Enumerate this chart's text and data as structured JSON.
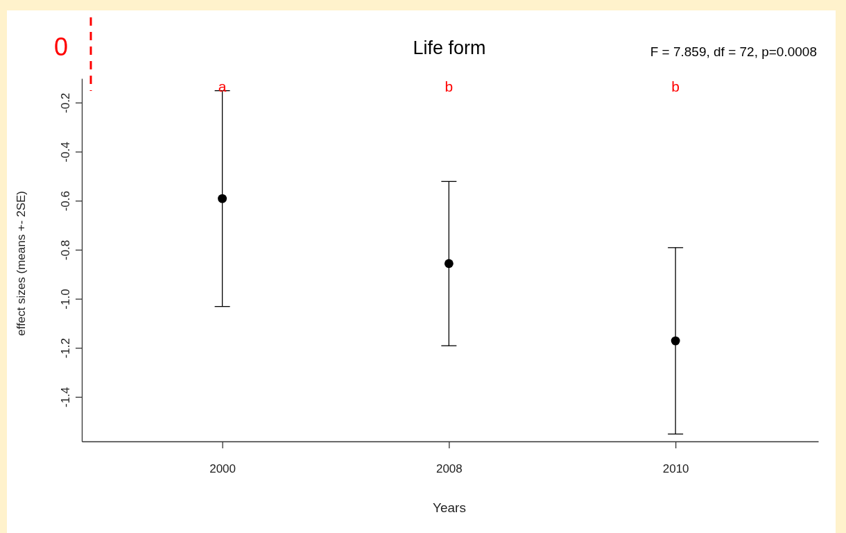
{
  "chart_data": {
    "type": "scatter",
    "title": "Life form",
    "xlabel": "Years",
    "ylabel": "effect sizes (means +- 2SE)",
    "categories": [
      "2000",
      "2008",
      "2010"
    ],
    "series": [
      {
        "color": "#000000",
        "values": [
          -0.59,
          -0.855,
          -1.17
        ],
        "errors": [
          0.44,
          0.335,
          0.38
        ]
      }
    ],
    "marker": "circle",
    "ylim": [
      -1.58,
      -0.1
    ],
    "yticks": [
      -0.2,
      -0.4,
      -0.6,
      -0.8,
      {
        "value": -1,
        "label": "-1.0"
      },
      -1.2,
      -1.4
    ],
    "annotations": [
      {
        "text": "F = 7.859, df = 72, p=0.0008"
      },
      {
        "text": "0"
      },
      "a",
      "b",
      "b"
    ]
  }
}
